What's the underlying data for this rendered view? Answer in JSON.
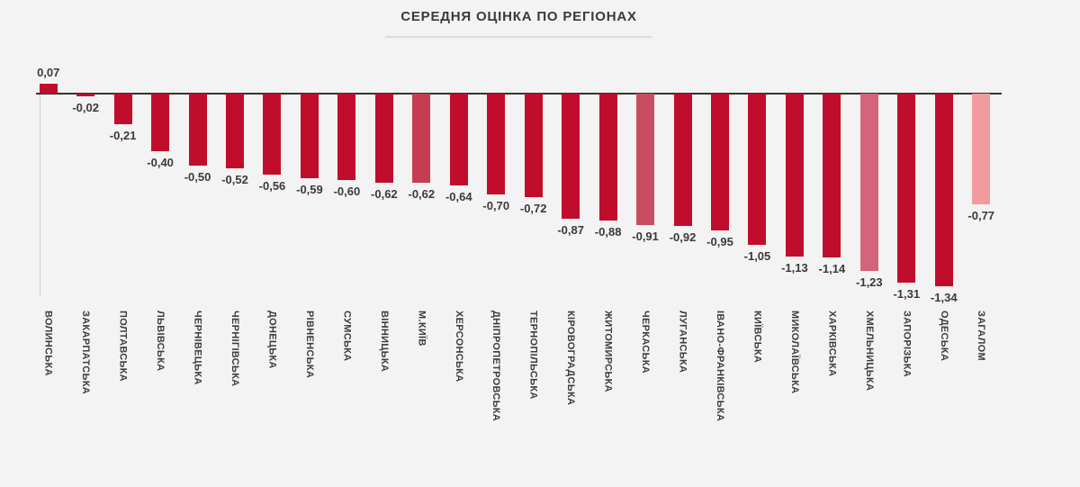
{
  "chart": {
    "title": "СЕРЕДНЯ ОЦІНКА ПО РЕГІОНАХ"
  },
  "chart_data": {
    "type": "bar",
    "title": "СЕРЕДНЯ ОЦІНКА ПО РЕГІОНАХ",
    "xlabel": "",
    "ylabel": "",
    "grid": false,
    "legend": false,
    "baseline": 0,
    "ylim": [
      -1.4,
      0.2
    ],
    "categories": [
      "ВОЛИНСЬКА",
      "ЗАКАРПАТСЬКА",
      "ПОЛТАВСЬКА",
      "ЛЬВІВСЬКА",
      "ЧЕРНІВЕЦЬКА",
      "ЧЕРНІГІВСЬКА",
      "ДОНЕЦЬКА",
      "РІВНЕНСЬКА",
      "СУМСЬКА",
      "ВІННИЦЬКА",
      "М.КИЇВ",
      "ХЕРСОНСЬКА",
      "ДНІПРОПЕТРОВСЬКА",
      "ТЕРНОПІЛЬСЬКА",
      "КІРОВОГРАДСЬКА",
      "ЖИТОМИРСЬКА",
      "ЧЕРКАСЬКА",
      "ЛУГАНСЬКА",
      "ІВАНО-ФРАНКІВСЬКА",
      "КИЇВСЬКА",
      "МИКОЛАЇВСЬКА",
      "ХАРКІВСЬКА",
      "ХМЕЛЬНИЦЬКА",
      "ЗАПОРІЗЬКА",
      "ОДЕСЬКА",
      "ЗАГАЛОМ"
    ],
    "values": [
      0.07,
      -0.02,
      -0.21,
      -0.4,
      -0.5,
      -0.52,
      -0.56,
      -0.59,
      -0.6,
      -0.62,
      -0.62,
      -0.64,
      -0.7,
      -0.72,
      -0.87,
      -0.88,
      -0.91,
      -0.92,
      -0.95,
      -1.05,
      -1.13,
      -1.14,
      -1.23,
      -1.31,
      -1.34,
      -0.77
    ],
    "value_labels": [
      "0,07",
      "-0,02",
      "-0,21",
      "-0,40",
      "-0,50",
      "-0,52",
      "-0,56",
      "-0,59",
      "-0,60",
      "-0,62",
      "-0,62",
      "-0,64",
      "-0,70",
      "-0,72",
      "-0,87",
      "-0,88",
      "-0,91",
      "-0,92",
      "-0,95",
      "-1,05",
      "-1,13",
      "-1,14",
      "-1,23",
      "-1,31",
      "-1,34",
      "-0,77"
    ],
    "colors": {
      "default": "#c10d2c",
      "overrides": {
        "10": "#c63c50",
        "16": "#c94d60",
        "22": "#d4647a",
        "25": "#f29b9f"
      },
      "axis": "#333333",
      "background": "#f3f3f3",
      "text": "#3a3a3a"
    }
  }
}
